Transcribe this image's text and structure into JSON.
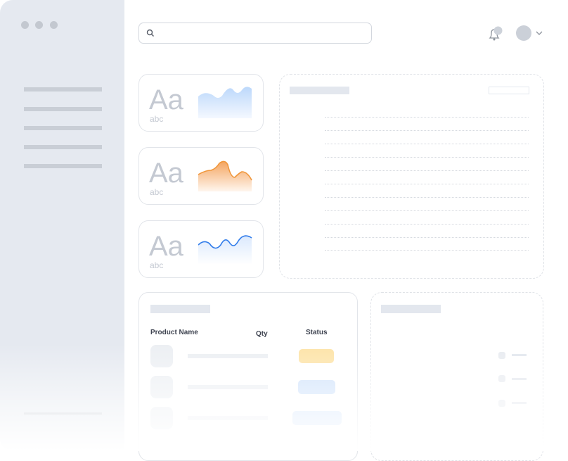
{
  "type_cards": [
    {
      "sample": "Aa",
      "caption": "abc",
      "chart": "area",
      "color": "#bcd8fb"
    },
    {
      "sample": "Aa",
      "caption": "abc",
      "chart": "area-line",
      "color": "#f0963a"
    },
    {
      "sample": "Aa",
      "caption": "abc",
      "chart": "line",
      "color": "#2f7bea"
    }
  ],
  "table": {
    "headers": {
      "name": "Product Name",
      "qty": "Qty",
      "status": "Status"
    },
    "status_colors": [
      "#fde3a7",
      "#cfe2fb",
      "#d6e6fc"
    ]
  },
  "header": {
    "icons": [
      "search-icon",
      "bell-icon",
      "avatar",
      "chevron-down-icon"
    ]
  }
}
